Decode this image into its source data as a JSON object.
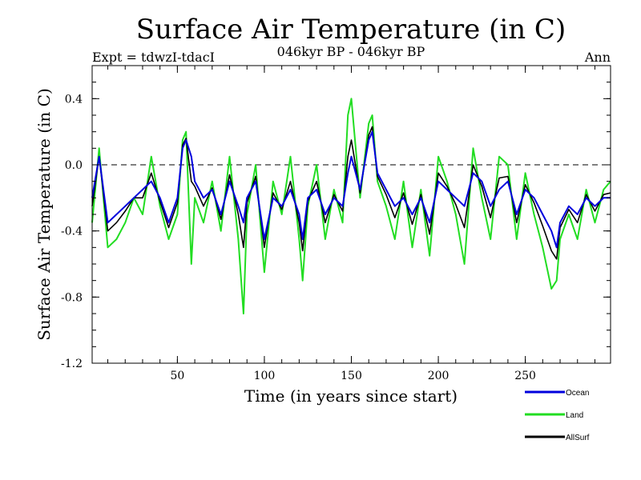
{
  "chart_data": {
    "type": "line",
    "title": "Surface Air Temperature (in C)",
    "subtitle_left": "Expt = tdwzI-tdacI",
    "subtitle_center": "046kyr BP - 046kyr BP",
    "subtitle_right": "Ann",
    "xlabel": "Time (in years since start)",
    "ylabel": "Surface Air Temperature (in C)",
    "xlim": [
      1,
      299
    ],
    "ylim": [
      -1.2,
      0.6
    ],
    "x_ticks": [
      50,
      100,
      150,
      200,
      250
    ],
    "x_tick_labels": [
      "50",
      "100",
      "150",
      "200",
      "250"
    ],
    "y_ticks": [
      -1.2,
      -0.8,
      -0.4,
      0.0,
      0.4
    ],
    "y_tick_labels": [
      "-1.2",
      "-0.8",
      "-0.4",
      "0.0",
      "0.4"
    ],
    "reference_line": {
      "y": 0.0,
      "style": "dashed"
    },
    "legend_position": "bottom-right, below plot",
    "x": [
      1,
      5,
      10,
      15,
      20,
      25,
      30,
      35,
      40,
      45,
      50,
      53,
      55,
      58,
      60,
      65,
      70,
      75,
      80,
      85,
      88,
      90,
      95,
      100,
      105,
      110,
      115,
      120,
      122,
      125,
      130,
      135,
      140,
      145,
      148,
      150,
      155,
      160,
      162,
      165,
      170,
      175,
      180,
      185,
      190,
      195,
      200,
      205,
      210,
      215,
      220,
      225,
      230,
      235,
      240,
      245,
      250,
      255,
      260,
      265,
      268,
      270,
      275,
      280,
      285,
      290,
      295,
      299
    ],
    "series": [
      {
        "name": "Ocean",
        "color": "#0000dd",
        "values": [
          -0.2,
          0.05,
          -0.35,
          -0.3,
          -0.25,
          -0.2,
          -0.15,
          -0.1,
          -0.2,
          -0.35,
          -0.2,
          0.1,
          0.15,
          0.05,
          -0.1,
          -0.2,
          -0.15,
          -0.3,
          -0.1,
          -0.25,
          -0.35,
          -0.2,
          -0.1,
          -0.45,
          -0.2,
          -0.25,
          -0.15,
          -0.3,
          -0.45,
          -0.2,
          -0.15,
          -0.3,
          -0.2,
          -0.25,
          -0.05,
          0.05,
          -0.15,
          0.15,
          0.2,
          -0.05,
          -0.15,
          -0.25,
          -0.2,
          -0.3,
          -0.2,
          -0.35,
          -0.1,
          -0.15,
          -0.2,
          -0.25,
          -0.05,
          -0.1,
          -0.25,
          -0.15,
          -0.1,
          -0.3,
          -0.15,
          -0.2,
          -0.3,
          -0.4,
          -0.5,
          -0.35,
          -0.25,
          -0.3,
          -0.2,
          -0.25,
          -0.2,
          -0.2
        ]
      },
      {
        "name": "Land",
        "color": "#22dd22",
        "values": [
          -0.35,
          0.1,
          -0.5,
          -0.45,
          -0.35,
          -0.2,
          -0.3,
          0.05,
          -0.25,
          -0.45,
          -0.3,
          0.15,
          0.2,
          -0.6,
          -0.2,
          -0.35,
          -0.1,
          -0.4,
          0.05,
          -0.45,
          -0.9,
          -0.3,
          0.0,
          -0.65,
          -0.1,
          -0.3,
          0.05,
          -0.45,
          -0.7,
          -0.25,
          0.0,
          -0.45,
          -0.15,
          -0.35,
          0.3,
          0.4,
          -0.2,
          0.25,
          0.3,
          -0.1,
          -0.25,
          -0.45,
          -0.1,
          -0.5,
          -0.15,
          -0.55,
          0.05,
          -0.1,
          -0.3,
          -0.6,
          0.1,
          -0.2,
          -0.45,
          0.05,
          0.0,
          -0.45,
          -0.05,
          -0.3,
          -0.5,
          -0.75,
          -0.7,
          -0.45,
          -0.3,
          -0.45,
          -0.15,
          -0.35,
          -0.15,
          -0.1
        ]
      },
      {
        "name": "AllSurf",
        "color": "#000000",
        "values": [
          -0.25,
          0.05,
          -0.4,
          -0.35,
          -0.28,
          -0.2,
          -0.2,
          -0.05,
          -0.22,
          -0.38,
          -0.23,
          0.12,
          0.16,
          -0.1,
          -0.13,
          -0.25,
          -0.14,
          -0.33,
          -0.06,
          -0.3,
          -0.5,
          -0.23,
          -0.07,
          -0.5,
          -0.17,
          -0.27,
          -0.1,
          -0.35,
          -0.52,
          -0.22,
          -0.1,
          -0.35,
          -0.18,
          -0.28,
          0.05,
          0.15,
          -0.17,
          0.18,
          0.23,
          -0.07,
          -0.18,
          -0.32,
          -0.17,
          -0.36,
          -0.18,
          -0.42,
          -0.05,
          -0.13,
          -0.24,
          -0.38,
          0.0,
          -0.13,
          -0.32,
          -0.08,
          -0.07,
          -0.35,
          -0.12,
          -0.23,
          -0.37,
          -0.52,
          -0.57,
          -0.38,
          -0.27,
          -0.35,
          -0.18,
          -0.28,
          -0.18,
          -0.17
        ]
      }
    ]
  }
}
